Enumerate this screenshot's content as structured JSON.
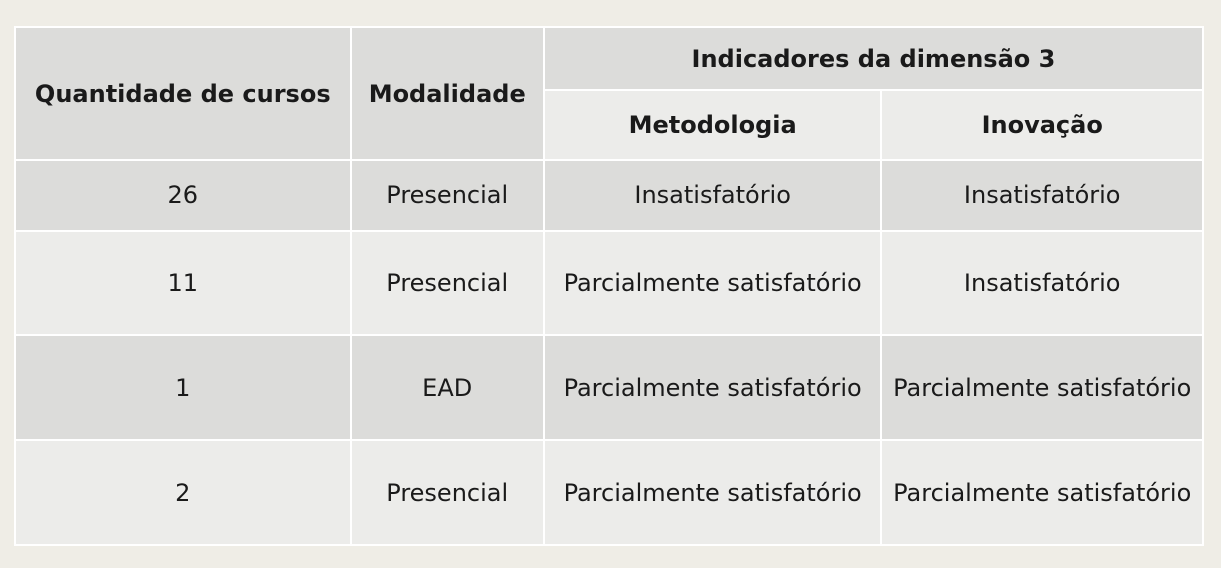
{
  "table": {
    "headers": {
      "quantity": "Quantidade de cursos",
      "modality": "Modalidade",
      "group": "Indicadores da dimensão 3",
      "methodology": "Metodologia",
      "innovation": "Inovação"
    },
    "rows": [
      {
        "quantity": "26",
        "modality": "Presencial",
        "methodology": "Insatisfatório",
        "innovation": "Insatisfatório"
      },
      {
        "quantity": "11",
        "modality": "Presencial",
        "methodology": "Parcialmente satisfatório",
        "innovation": "Insatisfatório"
      },
      {
        "quantity": "1",
        "modality": "EAD",
        "methodology": "Parcialmente satisfatório",
        "innovation": "Parcialmente satisfatório"
      },
      {
        "quantity": "2",
        "modality": "Presencial",
        "methodology": "Parcialmente satisfatório",
        "innovation": "Parcialmente satisfatório"
      }
    ]
  }
}
